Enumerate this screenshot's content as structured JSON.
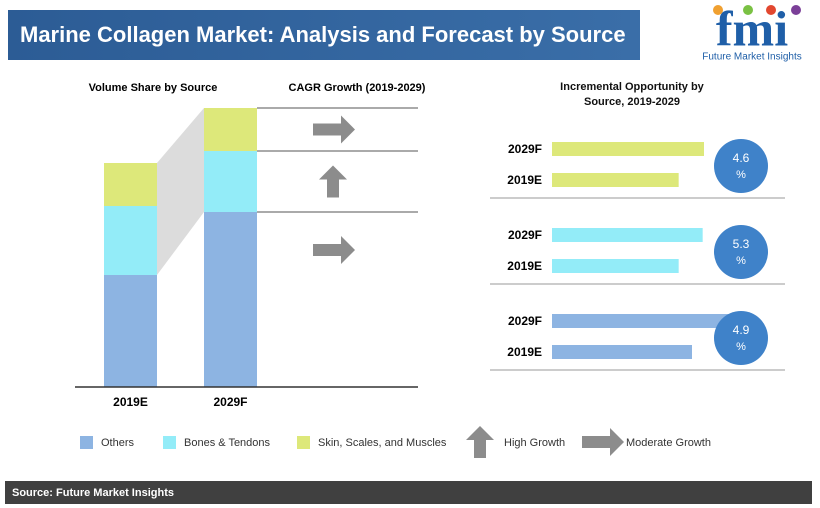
{
  "header": {
    "title": "Marine Collagen Market: Analysis and Forecast by Source",
    "logo": "fmi",
    "logo_caption": "Future Market Insights"
  },
  "chart_data": [
    {
      "type": "stacked-bar",
      "title": "Volume Share by Source",
      "categories": [
        "2019E",
        "2029F"
      ],
      "series": [
        {
          "name": "Others",
          "color": "#8db4e2",
          "values": [
            112,
            175
          ]
        },
        {
          "name": "Bones & Tendons",
          "color": "#93ecf8",
          "values": [
            69,
            61
          ]
        },
        {
          "name": "Skin, Scales, and Muscles",
          "color": "#dde87a",
          "values": [
            43,
            43
          ]
        }
      ],
      "ylim": [
        0,
        280
      ]
    },
    {
      "type": "arrows",
      "title": "CAGR Growth (2019-2029)",
      "color": "#8c8c8c",
      "arrow_types": [
        {
          "name": "High Growth",
          "direction": "up"
        },
        {
          "name": "Moderate Growth",
          "direction": "right"
        }
      ],
      "arrows": [
        "Moderate Growth",
        "High Growth",
        "Moderate Growth"
      ]
    },
    {
      "type": "grouped-hbar",
      "title": "Incremental Opportunity by Source, 2019-2029",
      "categories": [
        "2029F",
        "2019E"
      ],
      "groups": [
        {
          "series": "Skin, Scales, and Muscles",
          "color": "#dde87a",
          "values": [
            114,
            95
          ],
          "cagr": 4.6
        },
        {
          "series": "Bones & Tendons",
          "color": "#93ecf8",
          "values": [
            113,
            95
          ],
          "cagr": 5.3
        },
        {
          "series": "Others",
          "color": "#8db4e2",
          "values": [
            147,
            105
          ],
          "cagr": 4.9
        }
      ],
      "xlim": [
        0,
        150
      ],
      "unit": "%",
      "circle_color": "#3f82c9"
    }
  ],
  "source": "Source: Future Market Insights"
}
